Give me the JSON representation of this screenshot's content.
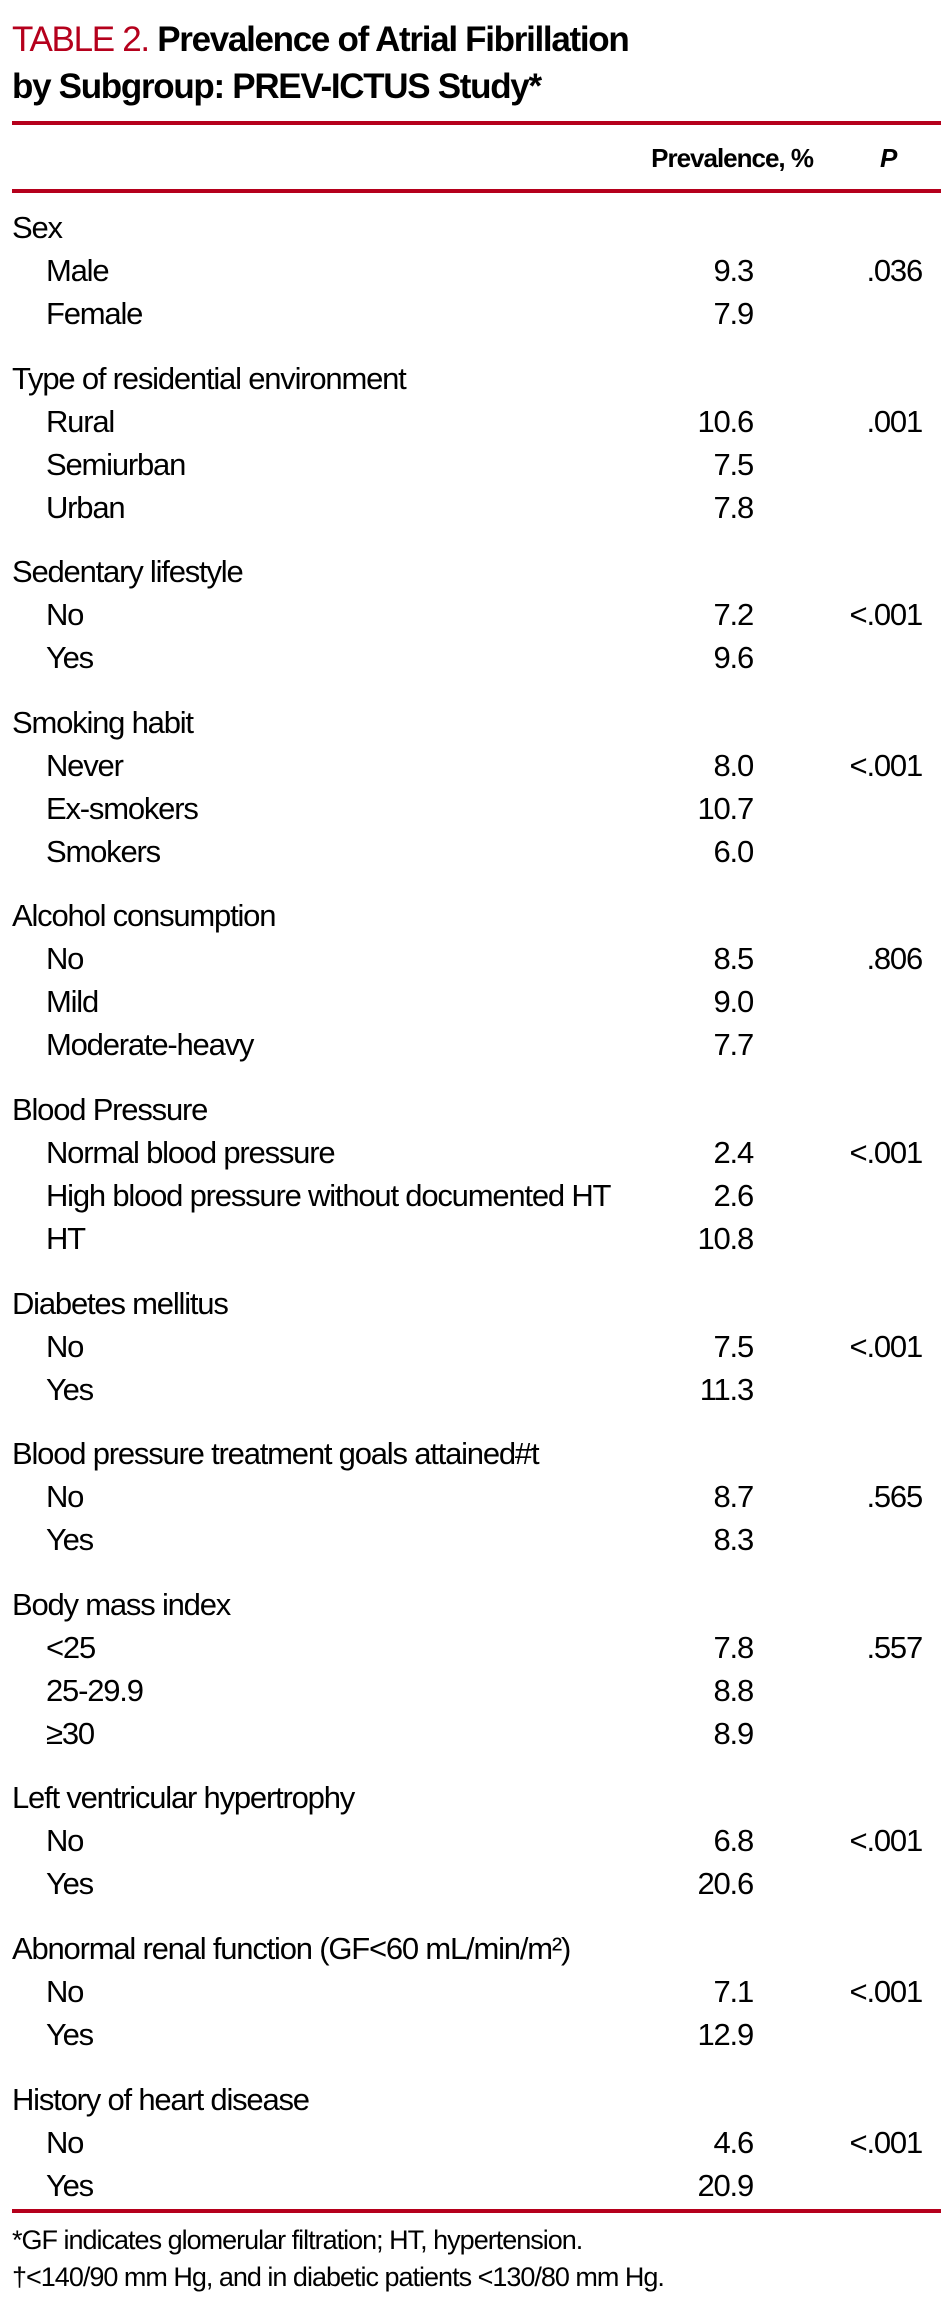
{
  "title": {
    "label": "TABLE 2.",
    "text_line1": "Prevalence of Atrial Fibrillation",
    "text_line2": "by Subgroup: PREV-ICTUS Study*"
  },
  "colors": {
    "accent": "#b5001c",
    "text": "#000000"
  },
  "columns": {
    "prevalence": "Prevalence, %",
    "p": "P"
  },
  "groups": [
    {
      "label": "Sex",
      "p": ".036",
      "rows": [
        {
          "label": "Male",
          "prevalence": "9.3"
        },
        {
          "label": "Female",
          "prevalence": "7.9"
        }
      ]
    },
    {
      "label": "Type of residential environment",
      "p": ".001",
      "rows": [
        {
          "label": "Rural",
          "prevalence": "10.6"
        },
        {
          "label": "Semiurban",
          "prevalence": "7.5"
        },
        {
          "label": "Urban",
          "prevalence": "7.8"
        }
      ]
    },
    {
      "label": "Sedentary lifestyle",
      "p": "<.001",
      "rows": [
        {
          "label": "No",
          "prevalence": "7.2"
        },
        {
          "label": "Yes",
          "prevalence": "9.6"
        }
      ]
    },
    {
      "label": "Smoking habit",
      "p": "<.001",
      "rows": [
        {
          "label": "Never",
          "prevalence": "8.0"
        },
        {
          "label": "Ex-smokers",
          "prevalence": "10.7"
        },
        {
          "label": "Smokers",
          "prevalence": "6.0"
        }
      ]
    },
    {
      "label": "Alcohol consumption",
      "p": ".806",
      "rows": [
        {
          "label": "No",
          "prevalence": "8.5"
        },
        {
          "label": "Mild",
          "prevalence": "9.0"
        },
        {
          "label": "Moderate-heavy",
          "prevalence": "7.7"
        }
      ]
    },
    {
      "label": "Blood Pressure",
      "p": "<.001",
      "rows": [
        {
          "label": "Normal blood pressure",
          "prevalence": "2.4"
        },
        {
          "label": "High blood pressure without documented HT",
          "prevalence": "2.6"
        },
        {
          "label": "HT",
          "prevalence": "10.8"
        }
      ]
    },
    {
      "label": "Diabetes mellitus",
      "p": "<.001",
      "rows": [
        {
          "label": "No",
          "prevalence": "7.5"
        },
        {
          "label": "Yes",
          "prevalence": "11.3"
        }
      ]
    },
    {
      "label": "Blood pressure treatment goals attained#t",
      "p": ".565",
      "rows": [
        {
          "label": "No",
          "prevalence": "8.7"
        },
        {
          "label": "Yes",
          "prevalence": "8.3"
        }
      ]
    },
    {
      "label": "Body mass index",
      "p": ".557",
      "rows": [
        {
          "label": "<25",
          "prevalence": "7.8"
        },
        {
          "label": "25-29.9",
          "prevalence": "8.8"
        },
        {
          "label": "≥30",
          "prevalence": "8.9"
        }
      ]
    },
    {
      "label": "Left ventricular hypertrophy",
      "p": "<.001",
      "rows": [
        {
          "label": "No",
          "prevalence": "6.8"
        },
        {
          "label": "Yes",
          "prevalence": "20.6"
        }
      ]
    },
    {
      "label": "Abnormal renal function (GF<60 mL/min/m²)",
      "p": "<.001",
      "rows": [
        {
          "label": "No",
          "prevalence": "7.1"
        },
        {
          "label": "Yes",
          "prevalence": "12.9"
        }
      ]
    },
    {
      "label": "History of heart disease",
      "p": "<.001",
      "rows": [
        {
          "label": "No",
          "prevalence": "4.6"
        },
        {
          "label": "Yes",
          "prevalence": "20.9"
        }
      ]
    }
  ],
  "footnotes": [
    "*GF indicates glomerular filtration; HT, hypertension.",
    "†<140/90 mm  Hg, and in diabetic patients <130/80 mm  Hg."
  ]
}
